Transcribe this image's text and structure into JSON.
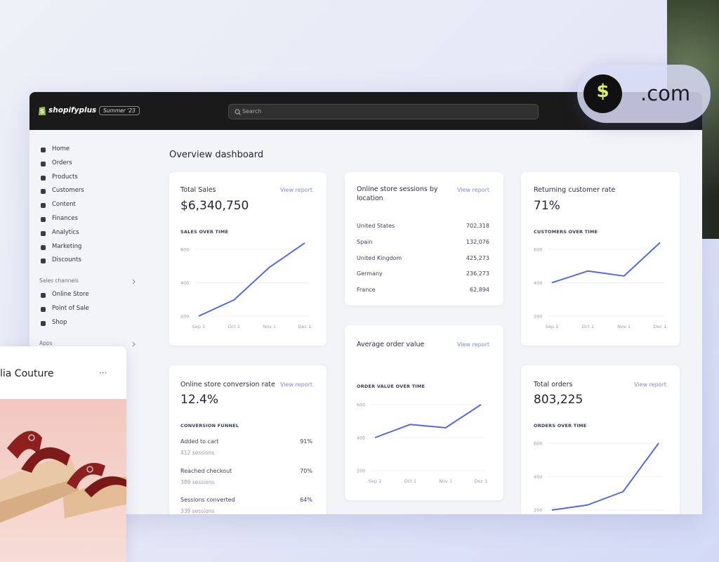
{
  "topbar": {
    "logo": "shopifyplus",
    "badge": "Summer '23",
    "search": "Search"
  },
  "domain_pill": {
    "icon": "$",
    "text": ".com"
  },
  "sidebar": {
    "items": [
      "Home",
      "Orders",
      "Products",
      "Customers",
      "Content",
      "Finances",
      "Analytics",
      "Marketing",
      "Discounts"
    ],
    "sales_channels": {
      "title": "Sales channels",
      "items": [
        "Online Store",
        "Point of Sale",
        "Shop"
      ]
    },
    "apps": "Apps"
  },
  "dashboard": {
    "title": "Overview dashboard",
    "cards": {
      "total_sales": {
        "title": "Total Sales",
        "link": "View report",
        "value": "$6,340,750",
        "chart_label": "SALES OVER TIME",
        "chart": {
          "type": "line",
          "x": [
            "Sep 1",
            "Oct 1",
            "Nov 1",
            "Dec 1"
          ],
          "values": [
            200,
            280,
            550,
            910
          ],
          "ylim": [
            200,
            950
          ],
          "yticks": [
            200,
            400,
            800
          ],
          "log": true,
          "color": "#5468e0"
        }
      },
      "sessions": {
        "title": "Online store sessions by location",
        "link": "View report",
        "rows": [
          [
            "United States",
            "702,318"
          ],
          [
            "Spain",
            "132,076"
          ],
          [
            "United Kingdom",
            "425,273"
          ],
          [
            "Germany",
            "236,273"
          ],
          [
            "France",
            "62,894"
          ]
        ]
      },
      "returning": {
        "title": "Returning customer rate",
        "value": "71%",
        "chart_label": "CUSTOMERS OVER TIME",
        "chart": {
          "type": "line",
          "x": [
            "Sep 1",
            "Oct 1",
            "Nov 1",
            "Dec 1"
          ],
          "values": [
            400,
            470,
            440,
            640
          ],
          "ylim": [
            200,
            650
          ],
          "yticks": [
            200,
            400,
            600
          ],
          "log": false,
          "color": "#5468e0"
        }
      },
      "order_value": {
        "title": "Average order value",
        "link": "View report",
        "chart_label": "ORDER VALUE OVER TIME",
        "chart": {
          "type": "line",
          "x": [
            "Sep 1",
            "Oct 1",
            "Nov 1",
            "Dec 1"
          ],
          "values": [
            400,
            480,
            460,
            600
          ],
          "ylim": [
            200,
            600
          ],
          "yticks": [
            200,
            400,
            600
          ],
          "log": false,
          "color": "#5468e0"
        }
      },
      "conversion": {
        "title": "Online store conversion rate",
        "link": "View report",
        "value": "12.4%",
        "section": "CONVERSION FUNNEL",
        "rows": [
          {
            "label": "Added to cart",
            "sub": "412 sessions",
            "value": "91%"
          },
          {
            "label": "Reached checkout",
            "sub": "389 sessions",
            "value": "70%"
          },
          {
            "label": "Sessions converted",
            "sub": "339 sessions",
            "value": "64%"
          }
        ]
      },
      "total_orders": {
        "title": "Total orders",
        "link": "View report",
        "value": "803,225",
        "chart_label": "ORDERS OVER TIME",
        "chart": {
          "type": "line",
          "values": [
            200,
            230,
            310,
            600
          ],
          "ylim": [
            200,
            600
          ],
          "yticks": [
            200,
            400,
            600
          ],
          "log": false,
          "color": "#5468e0"
        }
      }
    }
  },
  "store_card": {
    "title": "lia Couture",
    "menu": "···"
  }
}
